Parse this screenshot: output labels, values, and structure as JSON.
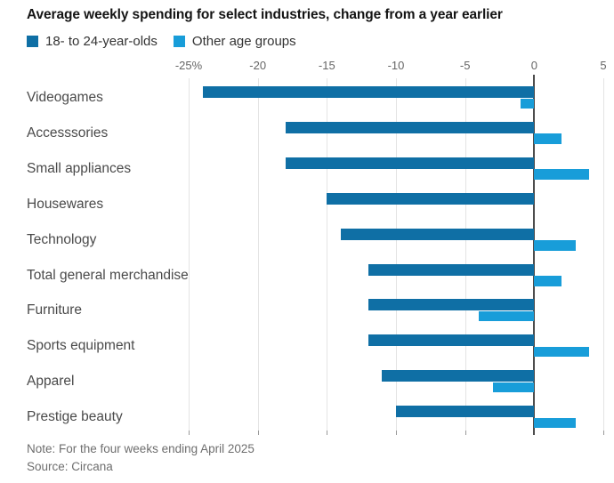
{
  "footer": {
    "note": "Note: For the four weeks ending April 2025",
    "source": "Source: Circana"
  },
  "colors": {
    "primary_blue": "#0f6fa5",
    "secondary_blue": "#189dd9",
    "gridline": "#e4e4e4",
    "zero_line": "#4d4d4d",
    "axis_tick": "#9a9a9a"
  },
  "chart_data": {
    "type": "bar",
    "orientation": "horizontal",
    "title": "Average weekly spending for select industries, change from a year earlier",
    "unit": "percent",
    "categories": [
      "Videogames",
      "Accesssories",
      "Small appliances",
      "Housewares",
      "Technology",
      "Total general merchandise",
      "Furniture",
      "Sports equipment",
      "Apparel",
      "Prestige beauty"
    ],
    "series": [
      {
        "name": "18- to 24-year-olds",
        "color": "#0f6fa5",
        "values": [
          -24,
          -18,
          -18,
          -15,
          -14,
          -12,
          -12,
          -12,
          -11,
          -10
        ]
      },
      {
        "name": "Other age groups",
        "color": "#189dd9",
        "values": [
          -1,
          2,
          4,
          0,
          3,
          2,
          -4,
          4,
          -3,
          3
        ]
      }
    ],
    "xlim": [
      -25,
      5
    ],
    "x_ticks": [
      -25,
      -20,
      -15,
      -10,
      -5,
      0,
      5
    ],
    "x_tick_labels": [
      "-25%",
      "-20",
      "-15",
      "-10",
      "-5",
      "0",
      "5"
    ],
    "grid": true,
    "legend_position": "top-left"
  }
}
